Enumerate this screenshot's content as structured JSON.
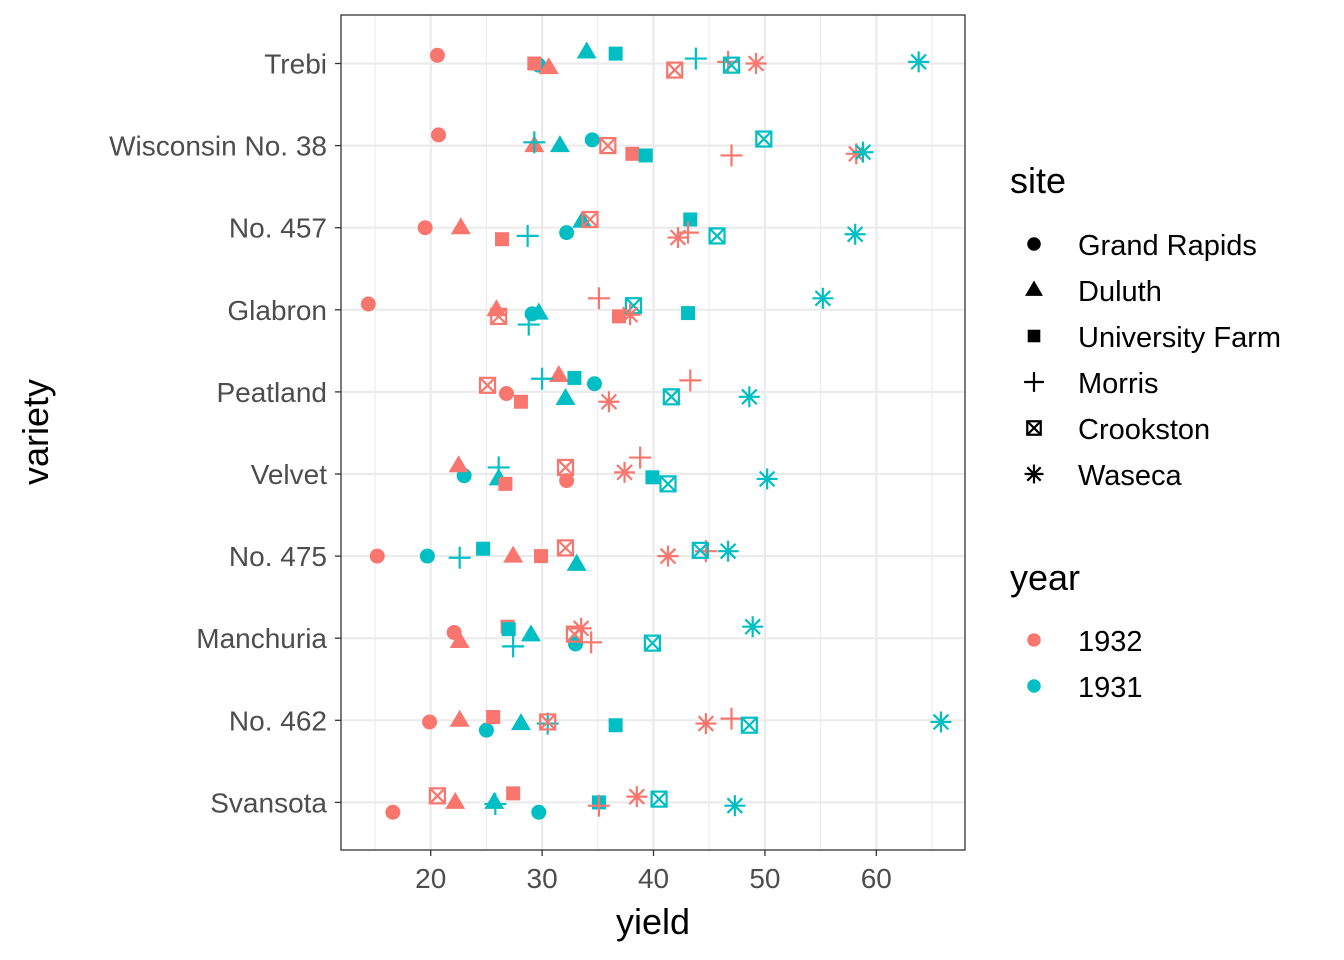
{
  "chart_data": {
    "type": "scatter",
    "title": "",
    "xlabel": "yield",
    "ylabel": "variety",
    "xlim": [
      12,
      68
    ],
    "xticks": [
      20,
      30,
      40,
      50,
      60
    ],
    "grid": true,
    "varieties": [
      "Trebi",
      "Wisconsin No. 38",
      "No. 457",
      "Glabron",
      "Peatland",
      "Velvet",
      "No. 475",
      "Manchuria",
      "No. 462",
      "Svansota"
    ],
    "sites": [
      "Grand Rapids",
      "Duluth",
      "University Farm",
      "Morris",
      "Crookston",
      "Waseca"
    ],
    "years": [
      "1932",
      "1931"
    ],
    "legend": {
      "placement": "right",
      "site_title": "site",
      "year_title": "year",
      "site_shapes": [
        "circle",
        "triangle",
        "square",
        "plus",
        "square-cross",
        "asterisk"
      ],
      "year_colors": {
        "1932": "#F8766D",
        "1931": "#00BFC4"
      }
    },
    "points": [
      {
        "variety": "Trebi",
        "site": "Grand Rapids",
        "year": "1932",
        "yield": 20.6,
        "jitter": 0.1
      },
      {
        "variety": "Trebi",
        "site": "Grand Rapids",
        "year": "1931",
        "yield": 29.7,
        "jitter": -0.02
      },
      {
        "variety": "Trebi",
        "site": "Duluth",
        "year": "1932",
        "yield": 30.6,
        "jitter": -0.05
      },
      {
        "variety": "Trebi",
        "site": "Duluth",
        "year": "1931",
        "yield": 34.0,
        "jitter": 0.14
      },
      {
        "variety": "Trebi",
        "site": "University Farm",
        "year": "1932",
        "yield": 29.3,
        "jitter": 0.0
      },
      {
        "variety": "Trebi",
        "site": "University Farm",
        "year": "1931",
        "yield": 36.6,
        "jitter": 0.12
      },
      {
        "variety": "Trebi",
        "site": "Morris",
        "year": "1932",
        "yield": 46.7,
        "jitter": 0.02
      },
      {
        "variety": "Trebi",
        "site": "Morris",
        "year": "1931",
        "yield": 43.8,
        "jitter": 0.06
      },
      {
        "variety": "Trebi",
        "site": "Crookston",
        "year": "1932",
        "yield": 41.9,
        "jitter": -0.08
      },
      {
        "variety": "Trebi",
        "site": "Crookston",
        "year": "1931",
        "yield": 47.0,
        "jitter": -0.02
      },
      {
        "variety": "Trebi",
        "site": "Waseca",
        "year": "1932",
        "yield": 49.2,
        "jitter": 0.0
      },
      {
        "variety": "Trebi",
        "site": "Waseca",
        "year": "1931",
        "yield": 63.8,
        "jitter": 0.02
      },
      {
        "variety": "Wisconsin No. 38",
        "site": "Grand Rapids",
        "year": "1932",
        "yield": 20.7,
        "jitter": 0.13
      },
      {
        "variety": "Wisconsin No. 38",
        "site": "Grand Rapids",
        "year": "1931",
        "yield": 34.5,
        "jitter": 0.07
      },
      {
        "variety": "Wisconsin No. 38",
        "site": "Duluth",
        "year": "1932",
        "yield": 29.3,
        "jitter": 0.0
      },
      {
        "variety": "Wisconsin No. 38",
        "site": "Duluth",
        "year": "1931",
        "yield": 31.6,
        "jitter": 0.0
      },
      {
        "variety": "Wisconsin No. 38",
        "site": "University Farm",
        "year": "1932",
        "yield": 38.1,
        "jitter": -0.1
      },
      {
        "variety": "Wisconsin No. 38",
        "site": "University Farm",
        "year": "1931",
        "yield": 39.3,
        "jitter": -0.12
      },
      {
        "variety": "Wisconsin No. 38",
        "site": "Morris",
        "year": "1932",
        "yield": 47.0,
        "jitter": -0.12
      },
      {
        "variety": "Wisconsin No. 38",
        "site": "Morris",
        "year": "1931",
        "yield": 29.3,
        "jitter": 0.04
      },
      {
        "variety": "Wisconsin No. 38",
        "site": "Crookston",
        "year": "1932",
        "yield": 35.9,
        "jitter": 0.0
      },
      {
        "variety": "Wisconsin No. 38",
        "site": "Crookston",
        "year": "1931",
        "yield": 49.9,
        "jitter": 0.08
      },
      {
        "variety": "Wisconsin No. 38",
        "site": "Waseca",
        "year": "1932",
        "yield": 58.2,
        "jitter": -0.1
      },
      {
        "variety": "Wisconsin No. 38",
        "site": "Waseca",
        "year": "1931",
        "yield": 58.8,
        "jitter": -0.08
      },
      {
        "variety": "No. 457",
        "site": "Grand Rapids",
        "year": "1932",
        "yield": 19.5,
        "jitter": 0.0
      },
      {
        "variety": "No. 457",
        "site": "Grand Rapids",
        "year": "1931",
        "yield": 32.2,
        "jitter": -0.06
      },
      {
        "variety": "No. 457",
        "site": "Duluth",
        "year": "1932",
        "yield": 22.7,
        "jitter": 0.0
      },
      {
        "variety": "No. 457",
        "site": "Duluth",
        "year": "1931",
        "yield": 33.6,
        "jitter": 0.08
      },
      {
        "variety": "No. 457",
        "site": "University Farm",
        "year": "1932",
        "yield": 26.4,
        "jitter": -0.14
      },
      {
        "variety": "No. 457",
        "site": "University Farm",
        "year": "1931",
        "yield": 43.3,
        "jitter": 0.1
      },
      {
        "variety": "No. 457",
        "site": "Morris",
        "year": "1932",
        "yield": 43.1,
        "jitter": -0.06
      },
      {
        "variety": "No. 457",
        "site": "Morris",
        "year": "1931",
        "yield": 28.7,
        "jitter": -0.1
      },
      {
        "variety": "No. 457",
        "site": "Crookston",
        "year": "1932",
        "yield": 34.3,
        "jitter": 0.1
      },
      {
        "variety": "No. 457",
        "site": "Crookston",
        "year": "1931",
        "yield": 45.7,
        "jitter": -0.1
      },
      {
        "variety": "No. 457",
        "site": "Waseca",
        "year": "1932",
        "yield": 42.2,
        "jitter": -0.12
      },
      {
        "variety": "No. 457",
        "site": "Waseca",
        "year": "1931",
        "yield": 58.1,
        "jitter": -0.08
      },
      {
        "variety": "Glabron",
        "site": "Grand Rapids",
        "year": "1932",
        "yield": 14.4,
        "jitter": 0.07
      },
      {
        "variety": "Glabron",
        "site": "Grand Rapids",
        "year": "1931",
        "yield": 29.1,
        "jitter": -0.05
      },
      {
        "variety": "Glabron",
        "site": "Duluth",
        "year": "1932",
        "yield": 25.9,
        "jitter": 0.0
      },
      {
        "variety": "Glabron",
        "site": "Duluth",
        "year": "1931",
        "yield": 29.7,
        "jitter": -0.04
      },
      {
        "variety": "Glabron",
        "site": "University Farm",
        "year": "1932",
        "yield": 36.9,
        "jitter": -0.08
      },
      {
        "variety": "Glabron",
        "site": "University Farm",
        "year": "1931",
        "yield": 43.1,
        "jitter": -0.04
      },
      {
        "variety": "Glabron",
        "site": "Morris",
        "year": "1932",
        "yield": 35.1,
        "jitter": 0.14
      },
      {
        "variety": "Glabron",
        "site": "Morris",
        "year": "1931",
        "yield": 28.8,
        "jitter": -0.18
      },
      {
        "variety": "Glabron",
        "site": "Crookston",
        "year": "1932",
        "yield": 26.1,
        "jitter": -0.08
      },
      {
        "variety": "Glabron",
        "site": "Crookston",
        "year": "1931",
        "yield": 38.2,
        "jitter": 0.05
      },
      {
        "variety": "Glabron",
        "site": "Waseca",
        "year": "1932",
        "yield": 37.9,
        "jitter": -0.06
      },
      {
        "variety": "Glabron",
        "site": "Waseca",
        "year": "1931",
        "yield": 55.2,
        "jitter": 0.14
      },
      {
        "variety": "Peatland",
        "site": "Grand Rapids",
        "year": "1932",
        "yield": 26.8,
        "jitter": -0.02
      },
      {
        "variety": "Peatland",
        "site": "Grand Rapids",
        "year": "1931",
        "yield": 34.7,
        "jitter": 0.1
      },
      {
        "variety": "Peatland",
        "site": "Duluth",
        "year": "1932",
        "yield": 31.5,
        "jitter": 0.2
      },
      {
        "variety": "Peatland",
        "site": "Duluth",
        "year": "1931",
        "yield": 32.1,
        "jitter": -0.08
      },
      {
        "variety": "Peatland",
        "site": "University Farm",
        "year": "1932",
        "yield": 28.1,
        "jitter": -0.12
      },
      {
        "variety": "Peatland",
        "site": "University Farm",
        "year": "1931",
        "yield": 32.9,
        "jitter": 0.17
      },
      {
        "variety": "Peatland",
        "site": "Morris",
        "year": "1932",
        "yield": 43.3,
        "jitter": 0.14
      },
      {
        "variety": "Peatland",
        "site": "Morris",
        "year": "1931",
        "yield": 30.0,
        "jitter": 0.16
      },
      {
        "variety": "Peatland",
        "site": "Crookston",
        "year": "1932",
        "yield": 25.1,
        "jitter": 0.08
      },
      {
        "variety": "Peatland",
        "site": "Crookston",
        "year": "1931",
        "yield": 41.6,
        "jitter": -0.06
      },
      {
        "variety": "Peatland",
        "site": "Waseca",
        "year": "1932",
        "yield": 36.0,
        "jitter": -0.12
      },
      {
        "variety": "Peatland",
        "site": "Waseca",
        "year": "1931",
        "yield": 48.6,
        "jitter": -0.06
      },
      {
        "variety": "Velvet",
        "site": "Grand Rapids",
        "year": "1932",
        "yield": 32.2,
        "jitter": -0.08
      },
      {
        "variety": "Velvet",
        "site": "Grand Rapids",
        "year": "1931",
        "yield": 23.0,
        "jitter": -0.02
      },
      {
        "variety": "Velvet",
        "site": "Duluth",
        "year": "1932",
        "yield": 22.5,
        "jitter": 0.1
      },
      {
        "variety": "Velvet",
        "site": "Duluth",
        "year": "1931",
        "yield": 26.1,
        "jitter": -0.06
      },
      {
        "variety": "Velvet",
        "site": "University Farm",
        "year": "1932",
        "yield": 26.7,
        "jitter": -0.12
      },
      {
        "variety": "Velvet",
        "site": "University Farm",
        "year": "1931",
        "yield": 39.9,
        "jitter": -0.04
      },
      {
        "variety": "Velvet",
        "site": "Morris",
        "year": "1932",
        "yield": 38.8,
        "jitter": 0.2
      },
      {
        "variety": "Velvet",
        "site": "Morris",
        "year": "1931",
        "yield": 26.1,
        "jitter": 0.08
      },
      {
        "variety": "Velvet",
        "site": "Crookston",
        "year": "1932",
        "yield": 32.1,
        "jitter": 0.08
      },
      {
        "variety": "Velvet",
        "site": "Crookston",
        "year": "1931",
        "yield": 41.3,
        "jitter": -0.12
      },
      {
        "variety": "Velvet",
        "site": "Waseca",
        "year": "1932",
        "yield": 37.4,
        "jitter": 0.02
      },
      {
        "variety": "Velvet",
        "site": "Waseca",
        "year": "1931",
        "yield": 50.2,
        "jitter": -0.06
      },
      {
        "variety": "No. 475",
        "site": "Grand Rapids",
        "year": "1932",
        "yield": 15.2,
        "jitter": 0.0
      },
      {
        "variety": "No. 475",
        "site": "Grand Rapids",
        "year": "1931",
        "yield": 19.7,
        "jitter": 0.0
      },
      {
        "variety": "No. 475",
        "site": "Duluth",
        "year": "1932",
        "yield": 27.4,
        "jitter": 0.0
      },
      {
        "variety": "No. 475",
        "site": "Duluth",
        "year": "1931",
        "yield": 33.1,
        "jitter": -0.1
      },
      {
        "variety": "No. 475",
        "site": "University Farm",
        "year": "1932",
        "yield": 29.9,
        "jitter": 0.0
      },
      {
        "variety": "No. 475",
        "site": "University Farm",
        "year": "1931",
        "yield": 24.7,
        "jitter": 0.09
      },
      {
        "variety": "No. 475",
        "site": "Morris",
        "year": "1932",
        "yield": 44.7,
        "jitter": 0.06
      },
      {
        "variety": "No. 475",
        "site": "Morris",
        "year": "1931",
        "yield": 22.6,
        "jitter": -0.02
      },
      {
        "variety": "No. 475",
        "site": "Crookston",
        "year": "1932",
        "yield": 32.1,
        "jitter": 0.1
      },
      {
        "variety": "No. 475",
        "site": "Crookston",
        "year": "1931",
        "yield": 44.2,
        "jitter": 0.07
      },
      {
        "variety": "No. 475",
        "site": "Waseca",
        "year": "1932",
        "yield": 41.3,
        "jitter": 0.0
      },
      {
        "variety": "No. 475",
        "site": "Waseca",
        "year": "1931",
        "yield": 46.7,
        "jitter": 0.06
      },
      {
        "variety": "Manchuria",
        "site": "Grand Rapids",
        "year": "1932",
        "yield": 22.1,
        "jitter": 0.07
      },
      {
        "variety": "Manchuria",
        "site": "Grand Rapids",
        "year": "1931",
        "yield": 33.0,
        "jitter": -0.07
      },
      {
        "variety": "Manchuria",
        "site": "Duluth",
        "year": "1932",
        "yield": 22.6,
        "jitter": -0.04
      },
      {
        "variety": "Manchuria",
        "site": "Duluth",
        "year": "1931",
        "yield": 29.0,
        "jitter": 0.04
      },
      {
        "variety": "Manchuria",
        "site": "University Farm",
        "year": "1932",
        "yield": 26.9,
        "jitter": 0.14
      },
      {
        "variety": "Manchuria",
        "site": "University Farm",
        "year": "1931",
        "yield": 27.0,
        "jitter": 0.11
      },
      {
        "variety": "Manchuria",
        "site": "Morris",
        "year": "1932",
        "yield": 34.4,
        "jitter": -0.05
      },
      {
        "variety": "Manchuria",
        "site": "Morris",
        "year": "1931",
        "yield": 27.4,
        "jitter": -0.1
      },
      {
        "variety": "Manchuria",
        "site": "Crookston",
        "year": "1932",
        "yield": 32.9,
        "jitter": 0.05
      },
      {
        "variety": "Manchuria",
        "site": "Crookston",
        "year": "1931",
        "yield": 39.9,
        "jitter": -0.06
      },
      {
        "variety": "Manchuria",
        "site": "Waseca",
        "year": "1932",
        "yield": 33.5,
        "jitter": 0.12
      },
      {
        "variety": "Manchuria",
        "site": "Waseca",
        "year": "1931",
        "yield": 48.9,
        "jitter": 0.14
      },
      {
        "variety": "No. 462",
        "site": "Grand Rapids",
        "year": "1932",
        "yield": 19.9,
        "jitter": -0.02
      },
      {
        "variety": "No. 462",
        "site": "Grand Rapids",
        "year": "1931",
        "yield": 25.0,
        "jitter": -0.12
      },
      {
        "variety": "No. 462",
        "site": "Duluth",
        "year": "1932",
        "yield": 22.6,
        "jitter": 0.0
      },
      {
        "variety": "No. 462",
        "site": "Duluth",
        "year": "1931",
        "yield": 28.1,
        "jitter": -0.04
      },
      {
        "variety": "No. 462",
        "site": "University Farm",
        "year": "1932",
        "yield": 25.6,
        "jitter": 0.04
      },
      {
        "variety": "No. 462",
        "site": "University Farm",
        "year": "1931",
        "yield": 36.6,
        "jitter": -0.06
      },
      {
        "variety": "No. 462",
        "site": "Morris",
        "year": "1932",
        "yield": 47.0,
        "jitter": 0.02
      },
      {
        "variety": "No. 462",
        "site": "Morris",
        "year": "1931",
        "yield": 30.5,
        "jitter": -0.04
      },
      {
        "variety": "No. 462",
        "site": "Crookston",
        "year": "1932",
        "yield": 30.5,
        "jitter": -0.02
      },
      {
        "variety": "No. 462",
        "site": "Crookston",
        "year": "1931",
        "yield": 48.6,
        "jitter": -0.06
      },
      {
        "variety": "No. 462",
        "site": "Waseca",
        "year": "1932",
        "yield": 44.7,
        "jitter": -0.04
      },
      {
        "variety": "No. 462",
        "site": "Waseca",
        "year": "1931",
        "yield": 65.8,
        "jitter": -0.02
      },
      {
        "variety": "Svansota",
        "site": "Grand Rapids",
        "year": "1932",
        "yield": 16.6,
        "jitter": -0.12
      },
      {
        "variety": "Svansota",
        "site": "Grand Rapids",
        "year": "1931",
        "yield": 29.7,
        "jitter": -0.12
      },
      {
        "variety": "Svansota",
        "site": "Duluth",
        "year": "1932",
        "yield": 22.2,
        "jitter": 0.0
      },
      {
        "variety": "Svansota",
        "site": "Duluth",
        "year": "1931",
        "yield": 25.7,
        "jitter": 0.0
      },
      {
        "variety": "Svansota",
        "site": "University Farm",
        "year": "1932",
        "yield": 27.4,
        "jitter": 0.11
      },
      {
        "variety": "Svansota",
        "site": "University Farm",
        "year": "1931",
        "yield": 35.1,
        "jitter": 0.0
      },
      {
        "variety": "Svansota",
        "site": "Morris",
        "year": "1932",
        "yield": 35.1,
        "jitter": -0.04
      },
      {
        "variety": "Svansota",
        "site": "Morris",
        "year": "1931",
        "yield": 25.8,
        "jitter": -0.02
      },
      {
        "variety": "Svansota",
        "site": "Crookston",
        "year": "1932",
        "yield": 20.6,
        "jitter": 0.08
      },
      {
        "variety": "Svansota",
        "site": "Crookston",
        "year": "1931",
        "yield": 40.5,
        "jitter": 0.04
      },
      {
        "variety": "Svansota",
        "site": "Waseca",
        "year": "1932",
        "yield": 38.5,
        "jitter": 0.07
      },
      {
        "variety": "Svansota",
        "site": "Waseca",
        "year": "1931",
        "yield": 47.3,
        "jitter": -0.04
      }
    ]
  }
}
